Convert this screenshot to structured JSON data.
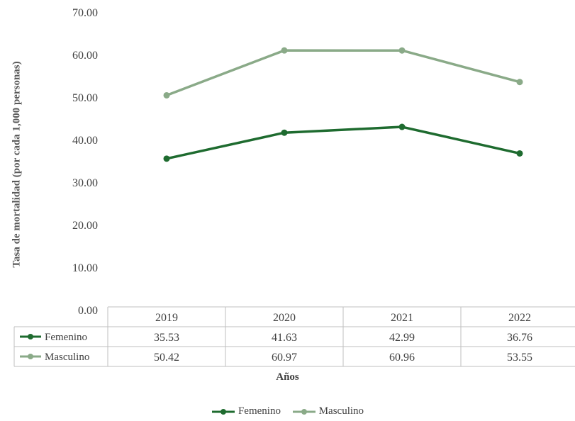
{
  "chart_data": {
    "type": "line",
    "title": "",
    "xlabel": "Años",
    "ylabel": "Tasa de mortalidad (por cada 1,000 personas)",
    "ylim": [
      0,
      70
    ],
    "yticks": [
      "0.00",
      "10.00",
      "20.00",
      "30.00",
      "40.00",
      "50.00",
      "60.00",
      "70.00"
    ],
    "categories": [
      "2019",
      "2020",
      "2021",
      "2022"
    ],
    "series": [
      {
        "name": "Femenino",
        "color": "#1e6b2f",
        "values": [
          35.53,
          41.63,
          42.99,
          36.76
        ],
        "labels": [
          "35.53",
          "41.63",
          "42.99",
          "36.76"
        ]
      },
      {
        "name": "Masculino",
        "color": "#8aaa88",
        "values": [
          50.42,
          60.97,
          60.96,
          53.55
        ],
        "labels": [
          "50.42",
          "60.97",
          "60.96",
          "53.55"
        ]
      }
    ],
    "grid": false,
    "legend": "bottom",
    "data_table": true
  }
}
